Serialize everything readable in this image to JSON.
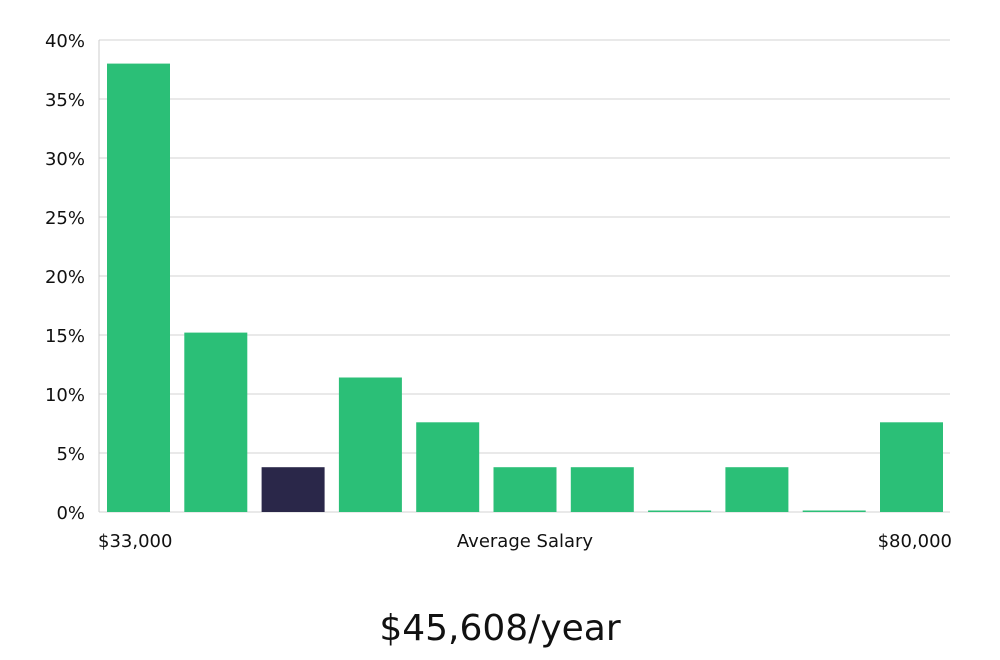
{
  "chart_data": {
    "type": "bar",
    "title": "",
    "xlabel": "Average Salary",
    "ylabel": "",
    "x_min_label": "$33,000",
    "x_max_label": "$80,000",
    "yticks": [
      "0%",
      "5%",
      "10%",
      "15%",
      "20%",
      "25%",
      "30%",
      "35%",
      "40%"
    ],
    "ylim": [
      0,
      40
    ],
    "grid": true,
    "bar_color": "#2bbf77",
    "highlight_color": "#2a2749",
    "highlight_index": 2,
    "values": [
      38,
      15.2,
      3.8,
      11.4,
      7.6,
      3.8,
      3.8,
      0,
      3.8,
      0,
      7.6
    ]
  },
  "salary_label": "$45,608/year"
}
